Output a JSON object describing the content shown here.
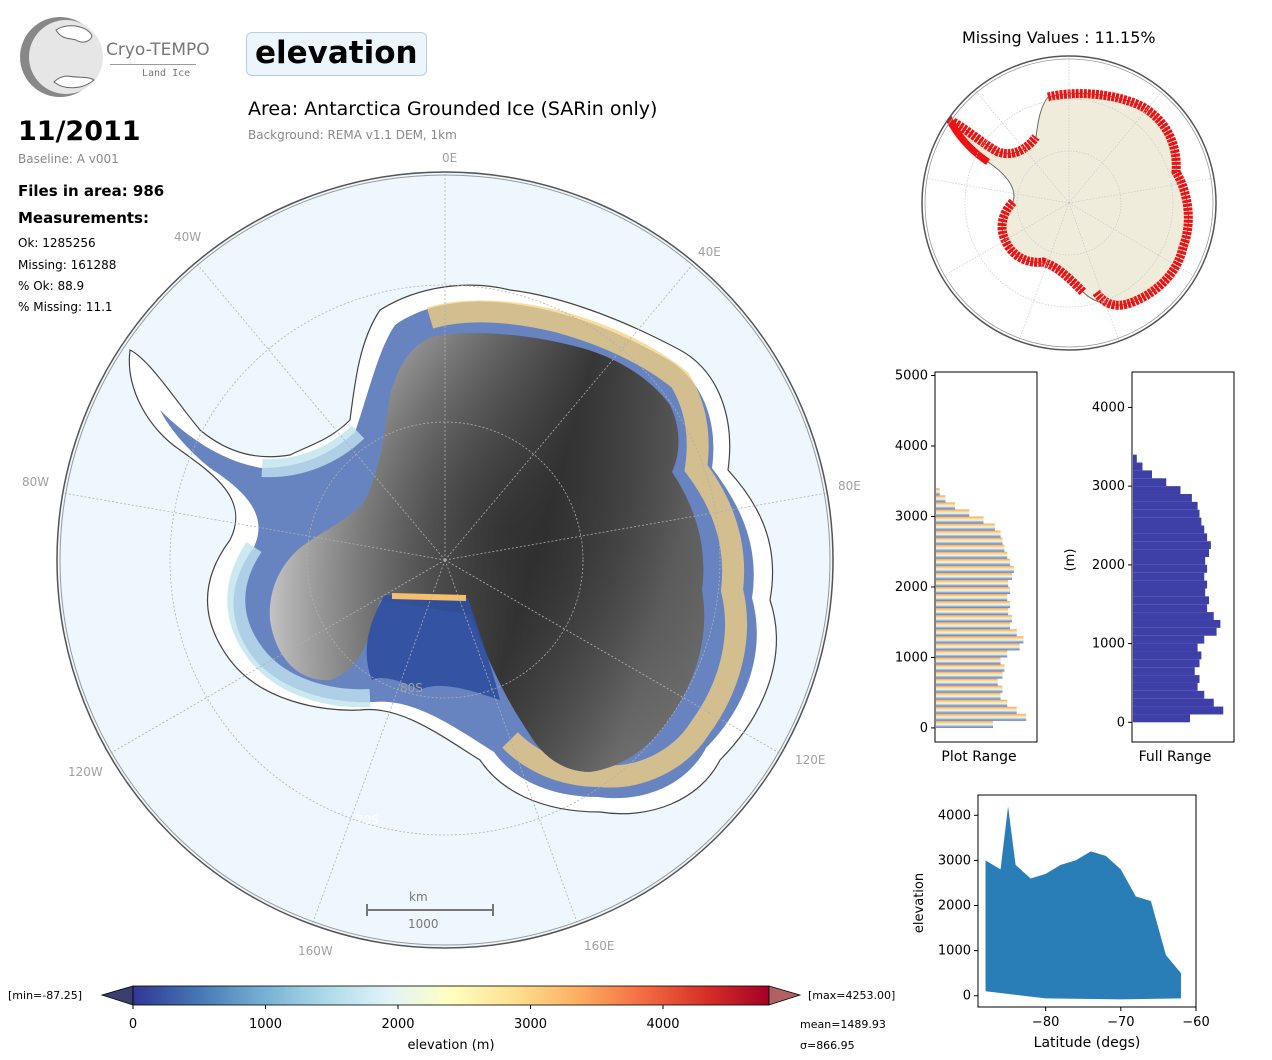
{
  "logo": {
    "name": "Cryo-TEMPO",
    "sub": "Land Ice"
  },
  "variable_badge": "elevation",
  "date": "11/2011",
  "baseline": "Baseline: A v001",
  "files_in_area": "Files in area: 986",
  "measurements_heading": "Measurements:",
  "stats": [
    "Ok: 1285256",
    "Missing: 161288",
    "% Ok: 88.9",
    "% Missing: 11.1"
  ],
  "area_title": "Area: Antarctica Grounded Ice (SARin only)",
  "background_note": "Background: REMA v1.1 DEM, 1km",
  "main_map": {
    "lon_labels": [
      "0E",
      "40E",
      "80E",
      "120E",
      "160E",
      "160W",
      "120W",
      "80W",
      "40W"
    ],
    "lat_labels": [
      "80S",
      "70S"
    ],
    "scale_bar": {
      "unit": "km",
      "value": "1000"
    }
  },
  "missing_map": {
    "title": "Missing Values : 11.15%"
  },
  "colorbar": {
    "min_label": "[min=-87.25]",
    "max_label": "[max=4253.00]",
    "ticks": [
      "0",
      "1000",
      "2000",
      "3000",
      "4000"
    ],
    "label": "elevation (m)",
    "mean": "mean=1489.93",
    "sigma": "σ=866.95",
    "range": [
      0,
      4800
    ],
    "colormap": "RdYlBu_r"
  },
  "chart_data": [
    {
      "type": "bar",
      "orientation": "horizontal",
      "xlabel": "Plot Range",
      "ylabel": "",
      "ylim": [
        -200,
        5050
      ],
      "yticks": [
        "0",
        "1000",
        "2000",
        "3000",
        "4000",
        "5000"
      ],
      "bins_m": [
        0,
        100,
        200,
        300,
        400,
        500,
        600,
        700,
        800,
        900,
        1000,
        1100,
        1200,
        1300,
        1400,
        1500,
        1600,
        1700,
        1800,
        1900,
        2000,
        2100,
        2200,
        2300,
        2400,
        2500,
        2600,
        2700,
        2800,
        2900,
        3000,
        3100,
        3200,
        3300
      ],
      "relative_counts": [
        0.6,
        0.95,
        0.85,
        0.75,
        0.68,
        0.7,
        0.65,
        0.7,
        0.72,
        0.68,
        0.75,
        0.88,
        0.92,
        0.85,
        0.78,
        0.8,
        0.76,
        0.78,
        0.75,
        0.78,
        0.76,
        0.8,
        0.82,
        0.78,
        0.75,
        0.72,
        0.7,
        0.68,
        0.62,
        0.5,
        0.35,
        0.2,
        0.1,
        0.04
      ]
    },
    {
      "type": "bar",
      "orientation": "horizontal",
      "xlabel": "Full Range",
      "ylabel": "(m)",
      "ylim": [
        -250,
        4450
      ],
      "yticks": [
        "0",
        "1000",
        "2000",
        "3000",
        "4000"
      ],
      "bins_m": [
        0,
        100,
        200,
        300,
        400,
        500,
        600,
        700,
        800,
        900,
        1000,
        1100,
        1200,
        1300,
        1400,
        1500,
        1600,
        1700,
        1800,
        1900,
        2000,
        2100,
        2200,
        2300,
        2400,
        2500,
        2600,
        2700,
        2800,
        2900,
        3000,
        3100,
        3200,
        3300
      ],
      "relative_counts": [
        0.6,
        0.95,
        0.85,
        0.75,
        0.68,
        0.7,
        0.65,
        0.7,
        0.72,
        0.68,
        0.75,
        0.88,
        0.92,
        0.85,
        0.78,
        0.8,
        0.76,
        0.78,
        0.75,
        0.78,
        0.76,
        0.8,
        0.82,
        0.78,
        0.75,
        0.72,
        0.7,
        0.68,
        0.62,
        0.5,
        0.35,
        0.2,
        0.1,
        0.04
      ]
    },
    {
      "type": "scatter",
      "xlabel": "Latitude (degs)",
      "ylabel": "elevation",
      "xlim": [
        -89,
        -60
      ],
      "ylim": [
        -250,
        4450
      ],
      "xticks": [
        "−80",
        "−70",
        "−60"
      ],
      "yticks": [
        "0",
        "1000",
        "2000",
        "3000",
        "4000"
      ],
      "color": "#1f77b4",
      "envelope_upper": [
        [
          -88,
          3000
        ],
        [
          -86,
          2800
        ],
        [
          -85,
          4200
        ],
        [
          -84,
          2900
        ],
        [
          -82,
          2600
        ],
        [
          -80,
          2700
        ],
        [
          -78,
          2900
        ],
        [
          -76,
          3000
        ],
        [
          -74,
          3200
        ],
        [
          -72,
          3100
        ],
        [
          -70,
          2800
        ],
        [
          -68,
          2200
        ],
        [
          -66,
          2100
        ],
        [
          -64,
          900
        ],
        [
          -62,
          500
        ]
      ],
      "envelope_lower": [
        [
          -88,
          100
        ],
        [
          -80,
          -60
        ],
        [
          -70,
          -80
        ],
        [
          -62,
          -60
        ]
      ]
    }
  ]
}
